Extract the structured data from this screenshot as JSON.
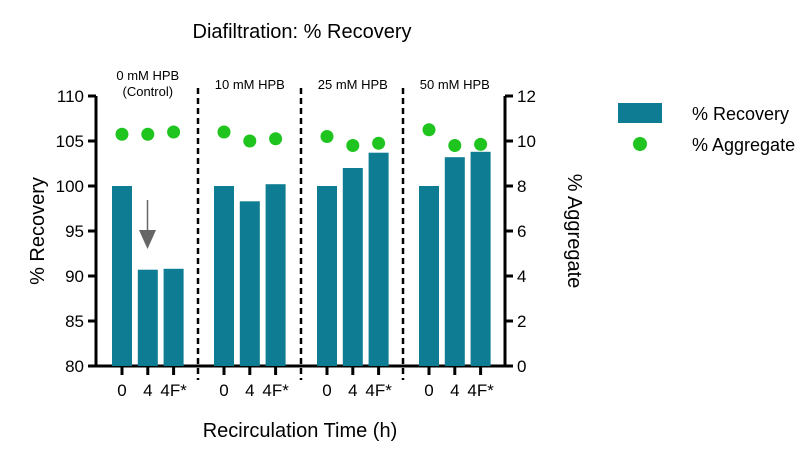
{
  "chart_data": {
    "type": "bar",
    "title": "Diafiltration: % Recovery",
    "xlabel": "Recirculation Time (h)",
    "ylabel": "% Recovery",
    "y2label": "% Aggregate",
    "ylim": [
      80,
      110
    ],
    "y2lim": [
      0,
      12
    ],
    "yticks": [
      "80",
      "85",
      "90",
      "95",
      "100",
      "105",
      "110"
    ],
    "y2ticks": [
      "0",
      "2",
      "4",
      "6",
      "8",
      "10",
      "12"
    ],
    "groups": [
      {
        "label": "0 mM HPB",
        "sublabel": "(Control)",
        "categories": [
          "0",
          "4",
          "4F*"
        ],
        "recovery": [
          100,
          90.7,
          90.8
        ],
        "aggregate": [
          10.3,
          10.3,
          10.4
        ]
      },
      {
        "label": "10 mM HPB",
        "sublabel": "",
        "categories": [
          "0",
          "4",
          "4F*"
        ],
        "recovery": [
          100,
          98.3,
          100.2
        ],
        "aggregate": [
          10.4,
          10.0,
          10.1
        ]
      },
      {
        "label": "25 mM HPB",
        "sublabel": "",
        "categories": [
          "0",
          "4",
          "4F*"
        ],
        "recovery": [
          100,
          102.0,
          103.7
        ],
        "aggregate": [
          10.2,
          9.8,
          9.9
        ]
      },
      {
        "label": "50 mM HPB",
        "sublabel": "",
        "categories": [
          "0",
          "4",
          "4F*"
        ],
        "recovery": [
          100,
          103.2,
          103.8
        ],
        "aggregate": [
          10.5,
          9.8,
          9.85
        ]
      }
    ],
    "legend": [
      {
        "label": "% Recovery",
        "type": "bar",
        "color": "#0e7c93"
      },
      {
        "label": "% Aggregate",
        "type": "dot",
        "color": "#1fc41f"
      }
    ],
    "legend_position": "right",
    "annotation": "down-arrow on 0 mM HPB, 4 h"
  }
}
